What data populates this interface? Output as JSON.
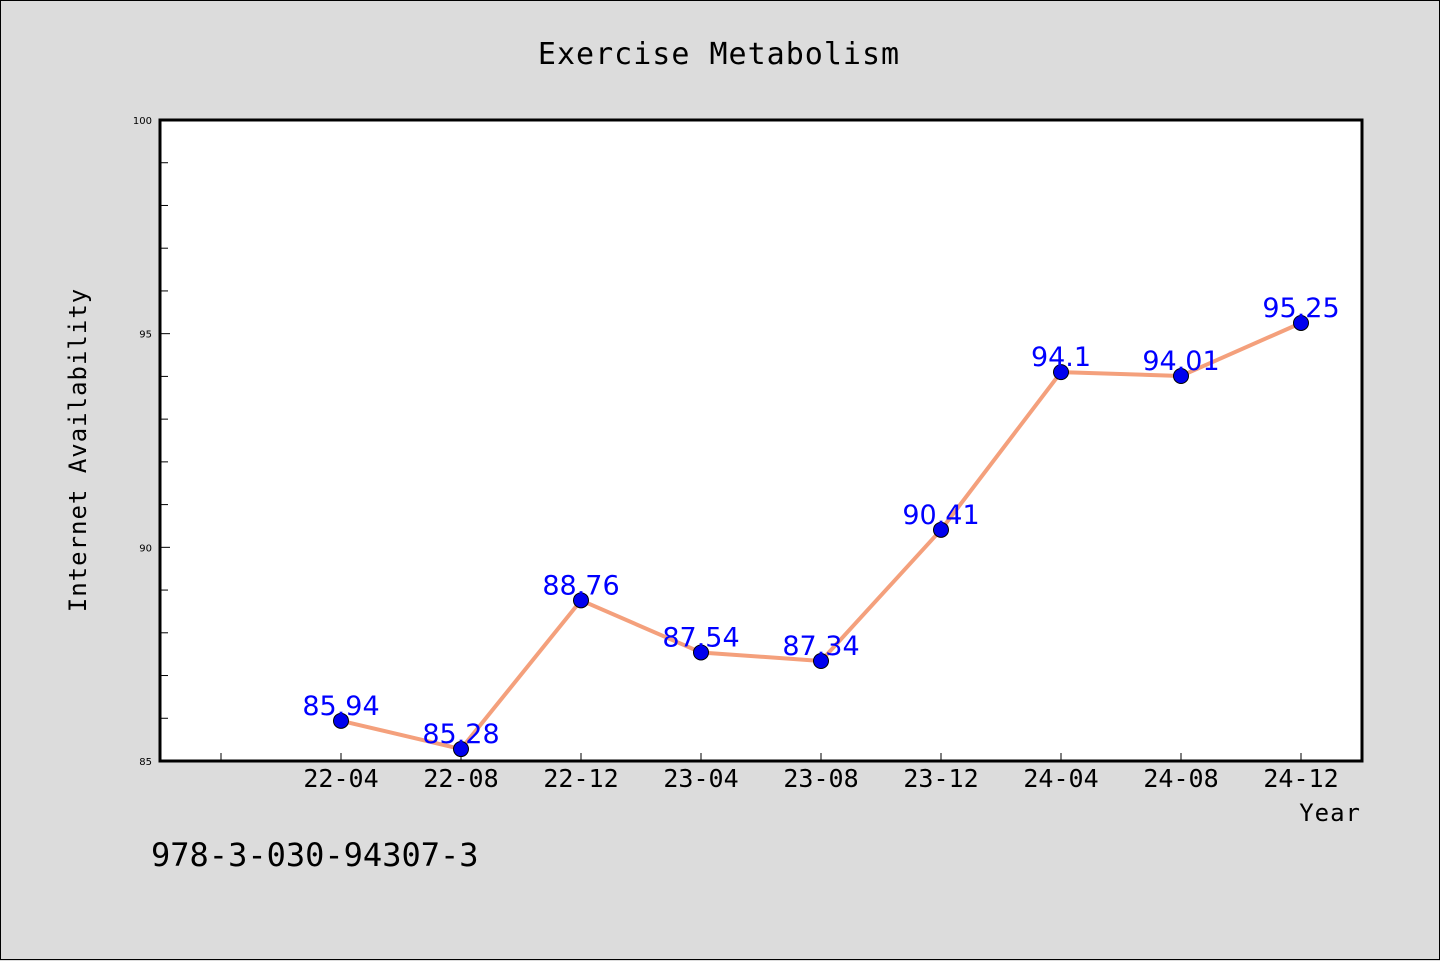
{
  "chart_data": {
    "type": "line",
    "title": "Exercise Metabolism",
    "xlabel": "Year",
    "ylabel": "Internet Availability",
    "categories": [
      "22-04",
      "22-08",
      "22-12",
      "23-04",
      "23-08",
      "23-12",
      "24-04",
      "24-08",
      "24-12"
    ],
    "series": [
      {
        "values": [
          85.94,
          85.28,
          88.76,
          87.54,
          87.34,
          90.41,
          94.1,
          94.01,
          95.25
        ],
        "data_labels": [
          "85.94",
          "85.28",
          "88.76",
          "87.54",
          "87.34",
          "90.41",
          "94.1",
          "94.01",
          "95.25"
        ],
        "line_color": "#f4a07c",
        "marker_color": "#0000ee"
      }
    ],
    "ylim": [
      85,
      100
    ],
    "yticks": [
      85,
      90,
      95,
      100
    ],
    "ytick_labels": [
      "85",
      "90",
      "95",
      "100"
    ],
    "grid": false,
    "legend": "none"
  },
  "footer": {
    "isbn": "978-3-030-94307-3"
  },
  "colors": {
    "background": "#dcdcdc",
    "plot_background": "#ffffff",
    "data_label": "#0000ff"
  }
}
